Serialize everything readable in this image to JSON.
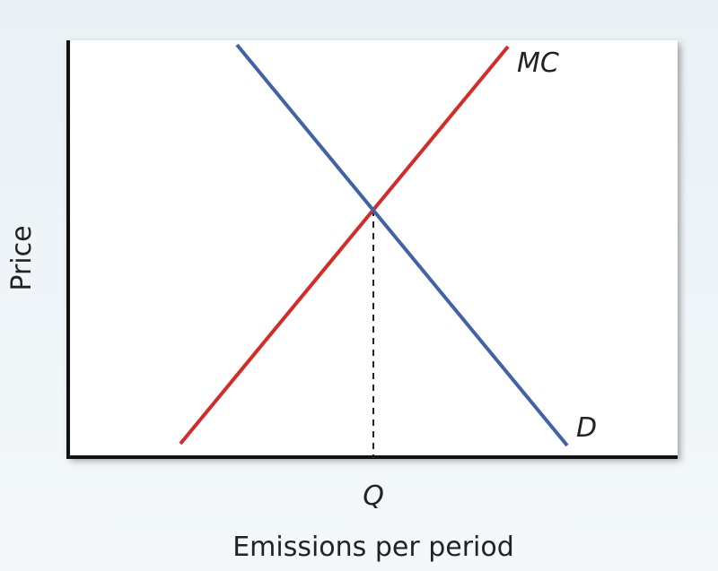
{
  "y_axis_label": "Price",
  "x_axis_label": "Emissions per period",
  "curves": [
    {
      "label": "MC"
    },
    {
      "label": "D"
    }
  ],
  "quantity_label": "Q"
}
